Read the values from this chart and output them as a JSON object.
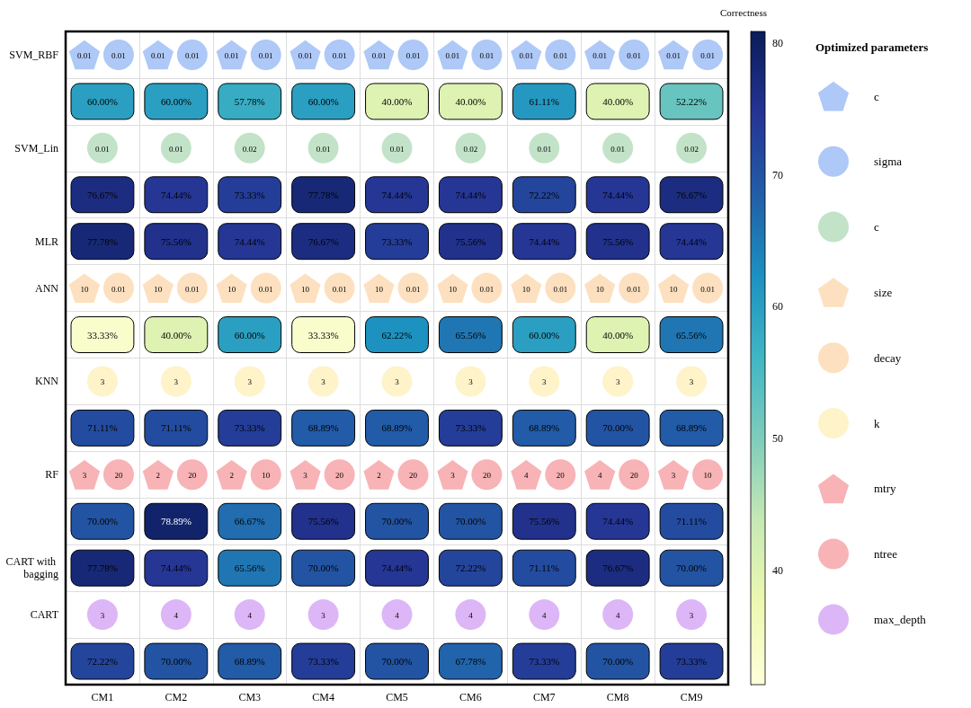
{
  "chart_data": {
    "type": "heatmap",
    "clabel": "Correctness",
    "legend_title": "Optimized parameters",
    "grid": true,
    "categories": [
      "CM1",
      "CM2",
      "CM3",
      "CM4",
      "CM5",
      "CM6",
      "CM7",
      "CM8",
      "CM9"
    ],
    "y_categories": [
      "SVM_RBF",
      null,
      "SVM_Lin",
      null,
      "MLR",
      "ANN",
      null,
      "KNN",
      null,
      "RF",
      null,
      "CART with bagging",
      "CART",
      null
    ],
    "clim": [
      31.33,
      80.89
    ],
    "cticks": [
      40,
      50,
      60,
      70,
      80
    ],
    "cells": [
      [
        null,
        null,
        null,
        null,
        null,
        null,
        null,
        null,
        null
      ],
      [
        60.0,
        60.0,
        57.78,
        60.0,
        40.0,
        40.0,
        61.11,
        40.0,
        52.22
      ],
      [
        null,
        null,
        null,
        null,
        null,
        null,
        null,
        null,
        null
      ],
      [
        76.67,
        74.44,
        73.33,
        77.78,
        74.44,
        74.44,
        72.22,
        74.44,
        76.67
      ],
      [
        77.78,
        75.56,
        74.44,
        76.67,
        73.33,
        75.56,
        74.44,
        75.56,
        74.44
      ],
      [
        null,
        null,
        null,
        null,
        null,
        null,
        null,
        null,
        null
      ],
      [
        33.33,
        40.0,
        60.0,
        33.33,
        62.22,
        65.56,
        60.0,
        40.0,
        65.56
      ],
      [
        null,
        null,
        null,
        null,
        null,
        null,
        null,
        null,
        null
      ],
      [
        71.11,
        71.11,
        73.33,
        68.89,
        68.89,
        73.33,
        68.89,
        70.0,
        68.89
      ],
      [
        null,
        null,
        null,
        null,
        null,
        null,
        null,
        null,
        null
      ],
      [
        70.0,
        78.89,
        66.67,
        75.56,
        70.0,
        70.0,
        75.56,
        74.44,
        71.11
      ],
      [
        77.78,
        74.44,
        65.56,
        70.0,
        74.44,
        72.22,
        71.11,
        76.67,
        70.0
      ],
      [
        null,
        null,
        null,
        null,
        null,
        null,
        null,
        null,
        null
      ],
      [
        72.22,
        70.0,
        68.89,
        73.33,
        70.0,
        67.78,
        73.33,
        70.0,
        73.33
      ]
    ],
    "cell_labels": [
      [
        "0.01 0.01",
        "0.01 0.01",
        "0.01 0.01",
        "0.01 0.01",
        "0.01 0.01",
        "0.01 0.01",
        "0.01 0.01",
        "0.01 0.01",
        "0.01 0.01"
      ],
      [
        "60.00%",
        "60.00%",
        "57.78%",
        "60.00%",
        "40.00%",
        "40.00%",
        "61.11%",
        "40.00%",
        "52.22%"
      ],
      [
        "0.01",
        "0.01",
        "0.02",
        "0.01",
        "0.01",
        "0.02",
        "0.01",
        "0.01",
        "0.02"
      ],
      [
        "76.67%",
        "74.44%",
        "73.33%",
        "77.78%",
        "74.44%",
        "74.44%",
        "72.22%",
        "74.44%",
        "76.67%"
      ],
      [
        "77.78%",
        "75.56%",
        "74.44%",
        "76.67%",
        "73.33%",
        "75.56%",
        "74.44%",
        "75.56%",
        "74.44%"
      ],
      [
        "10 0.01",
        "10 0.01",
        "10 0.01",
        "10 0.01",
        "10 0.01",
        "10 0.01",
        "10 0.01",
        "10 0.01",
        "10 0.01"
      ],
      [
        "33.33%",
        "40.00%",
        "60.00%",
        "33.33%",
        "62.22%",
        "65.56%",
        "60.00%",
        "40.00%",
        "65.56%"
      ],
      [
        "3",
        "3",
        "3",
        "3",
        "3",
        "3",
        "3",
        "3",
        "3"
      ],
      [
        "71.11%",
        "71.11%",
        "73.33%",
        "68.89%",
        "68.89%",
        "73.33%",
        "68.89%",
        "70.00%",
        "68.89%"
      ],
      [
        "3 20",
        "2 20",
        "2 10",
        "3 20",
        "2 20",
        "3 20",
        "4 20",
        "4 20",
        "3 10"
      ],
      [
        "70.00%",
        "78.89%",
        "66.67%",
        "75.56%",
        "70.00%",
        "70.00%",
        "75.56%",
        "74.44%",
        "71.11%"
      ],
      [
        "77.78%",
        "74.44%",
        "65.56%",
        "70.00%",
        "74.44%",
        "72.22%",
        "71.11%",
        "76.67%",
        "70.00%"
      ],
      [
        "3",
        "4",
        "4",
        "3",
        "4",
        "4",
        "4",
        "4",
        "3"
      ],
      [
        "72.22%",
        "70.00%",
        "68.89%",
        "73.33%",
        "70.00%",
        "67.78%",
        "73.33%",
        "70.00%",
        "73.33%"
      ]
    ],
    "annotations": [
      "c",
      "sigma",
      "c",
      "size",
      "decay",
      "k",
      "mtry",
      "ntree",
      "max_depth"
    ]
  }
}
